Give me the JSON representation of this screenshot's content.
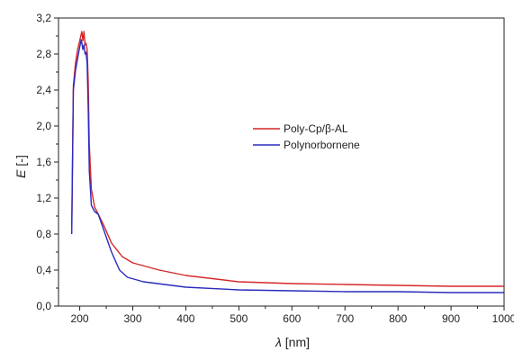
{
  "chart_data": {
    "type": "line",
    "title": "",
    "xlabel": {
      "symbol": "λ",
      "unit": " [nm]"
    },
    "ylabel": {
      "symbol": "E",
      "unit": " [-]"
    },
    "xlim": [
      160,
      1000
    ],
    "ylim": [
      0.0,
      3.2
    ],
    "x_ticks": [
      "200",
      "300",
      "400",
      "500",
      "600",
      "700",
      "800",
      "900",
      "1000"
    ],
    "x_tick_values": [
      200,
      300,
      400,
      500,
      600,
      700,
      800,
      900,
      1000
    ],
    "y_ticks": [
      "0,0",
      "0,4",
      "0,8",
      "1,2",
      "1,6",
      "2,0",
      "2,4",
      "2,8",
      "3,2"
    ],
    "y_tick_values": [
      0.0,
      0.4,
      0.8,
      1.2,
      1.6,
      2.0,
      2.4,
      2.8,
      3.2
    ],
    "grid": false,
    "legend_position": "center-right",
    "series": [
      {
        "name": "Poly-Cp/β-AL",
        "color": "#d62728",
        "x": [
          185,
          188,
          192,
          196,
          200,
          204,
          206,
          208,
          210,
          212,
          214,
          216,
          218,
          222,
          228,
          235,
          245,
          260,
          280,
          300,
          350,
          400,
          500,
          600,
          700,
          800,
          900,
          1000
        ],
        "y": [
          0.88,
          2.45,
          2.7,
          2.85,
          2.95,
          3.05,
          2.95,
          3.05,
          2.9,
          2.92,
          2.85,
          2.5,
          1.8,
          1.3,
          1.1,
          1.02,
          0.9,
          0.7,
          0.55,
          0.48,
          0.4,
          0.34,
          0.27,
          0.25,
          0.24,
          0.23,
          0.22,
          0.22
        ]
      },
      {
        "name": "Polynorbornene",
        "color": "#2b2bbd",
        "x": [
          185,
          188,
          192,
          196,
          200,
          203,
          206,
          208,
          210,
          212,
          214,
          216,
          218,
          222,
          228,
          235,
          245,
          260,
          275,
          290,
          320,
          360,
          400,
          500,
          600,
          700,
          800,
          900,
          1000
        ],
        "y": [
          0.8,
          2.4,
          2.62,
          2.75,
          2.88,
          2.96,
          2.85,
          2.9,
          2.8,
          2.82,
          2.7,
          2.2,
          1.5,
          1.12,
          1.05,
          1.02,
          0.85,
          0.6,
          0.4,
          0.32,
          0.27,
          0.24,
          0.21,
          0.18,
          0.17,
          0.16,
          0.16,
          0.15,
          0.15
        ]
      }
    ]
  }
}
